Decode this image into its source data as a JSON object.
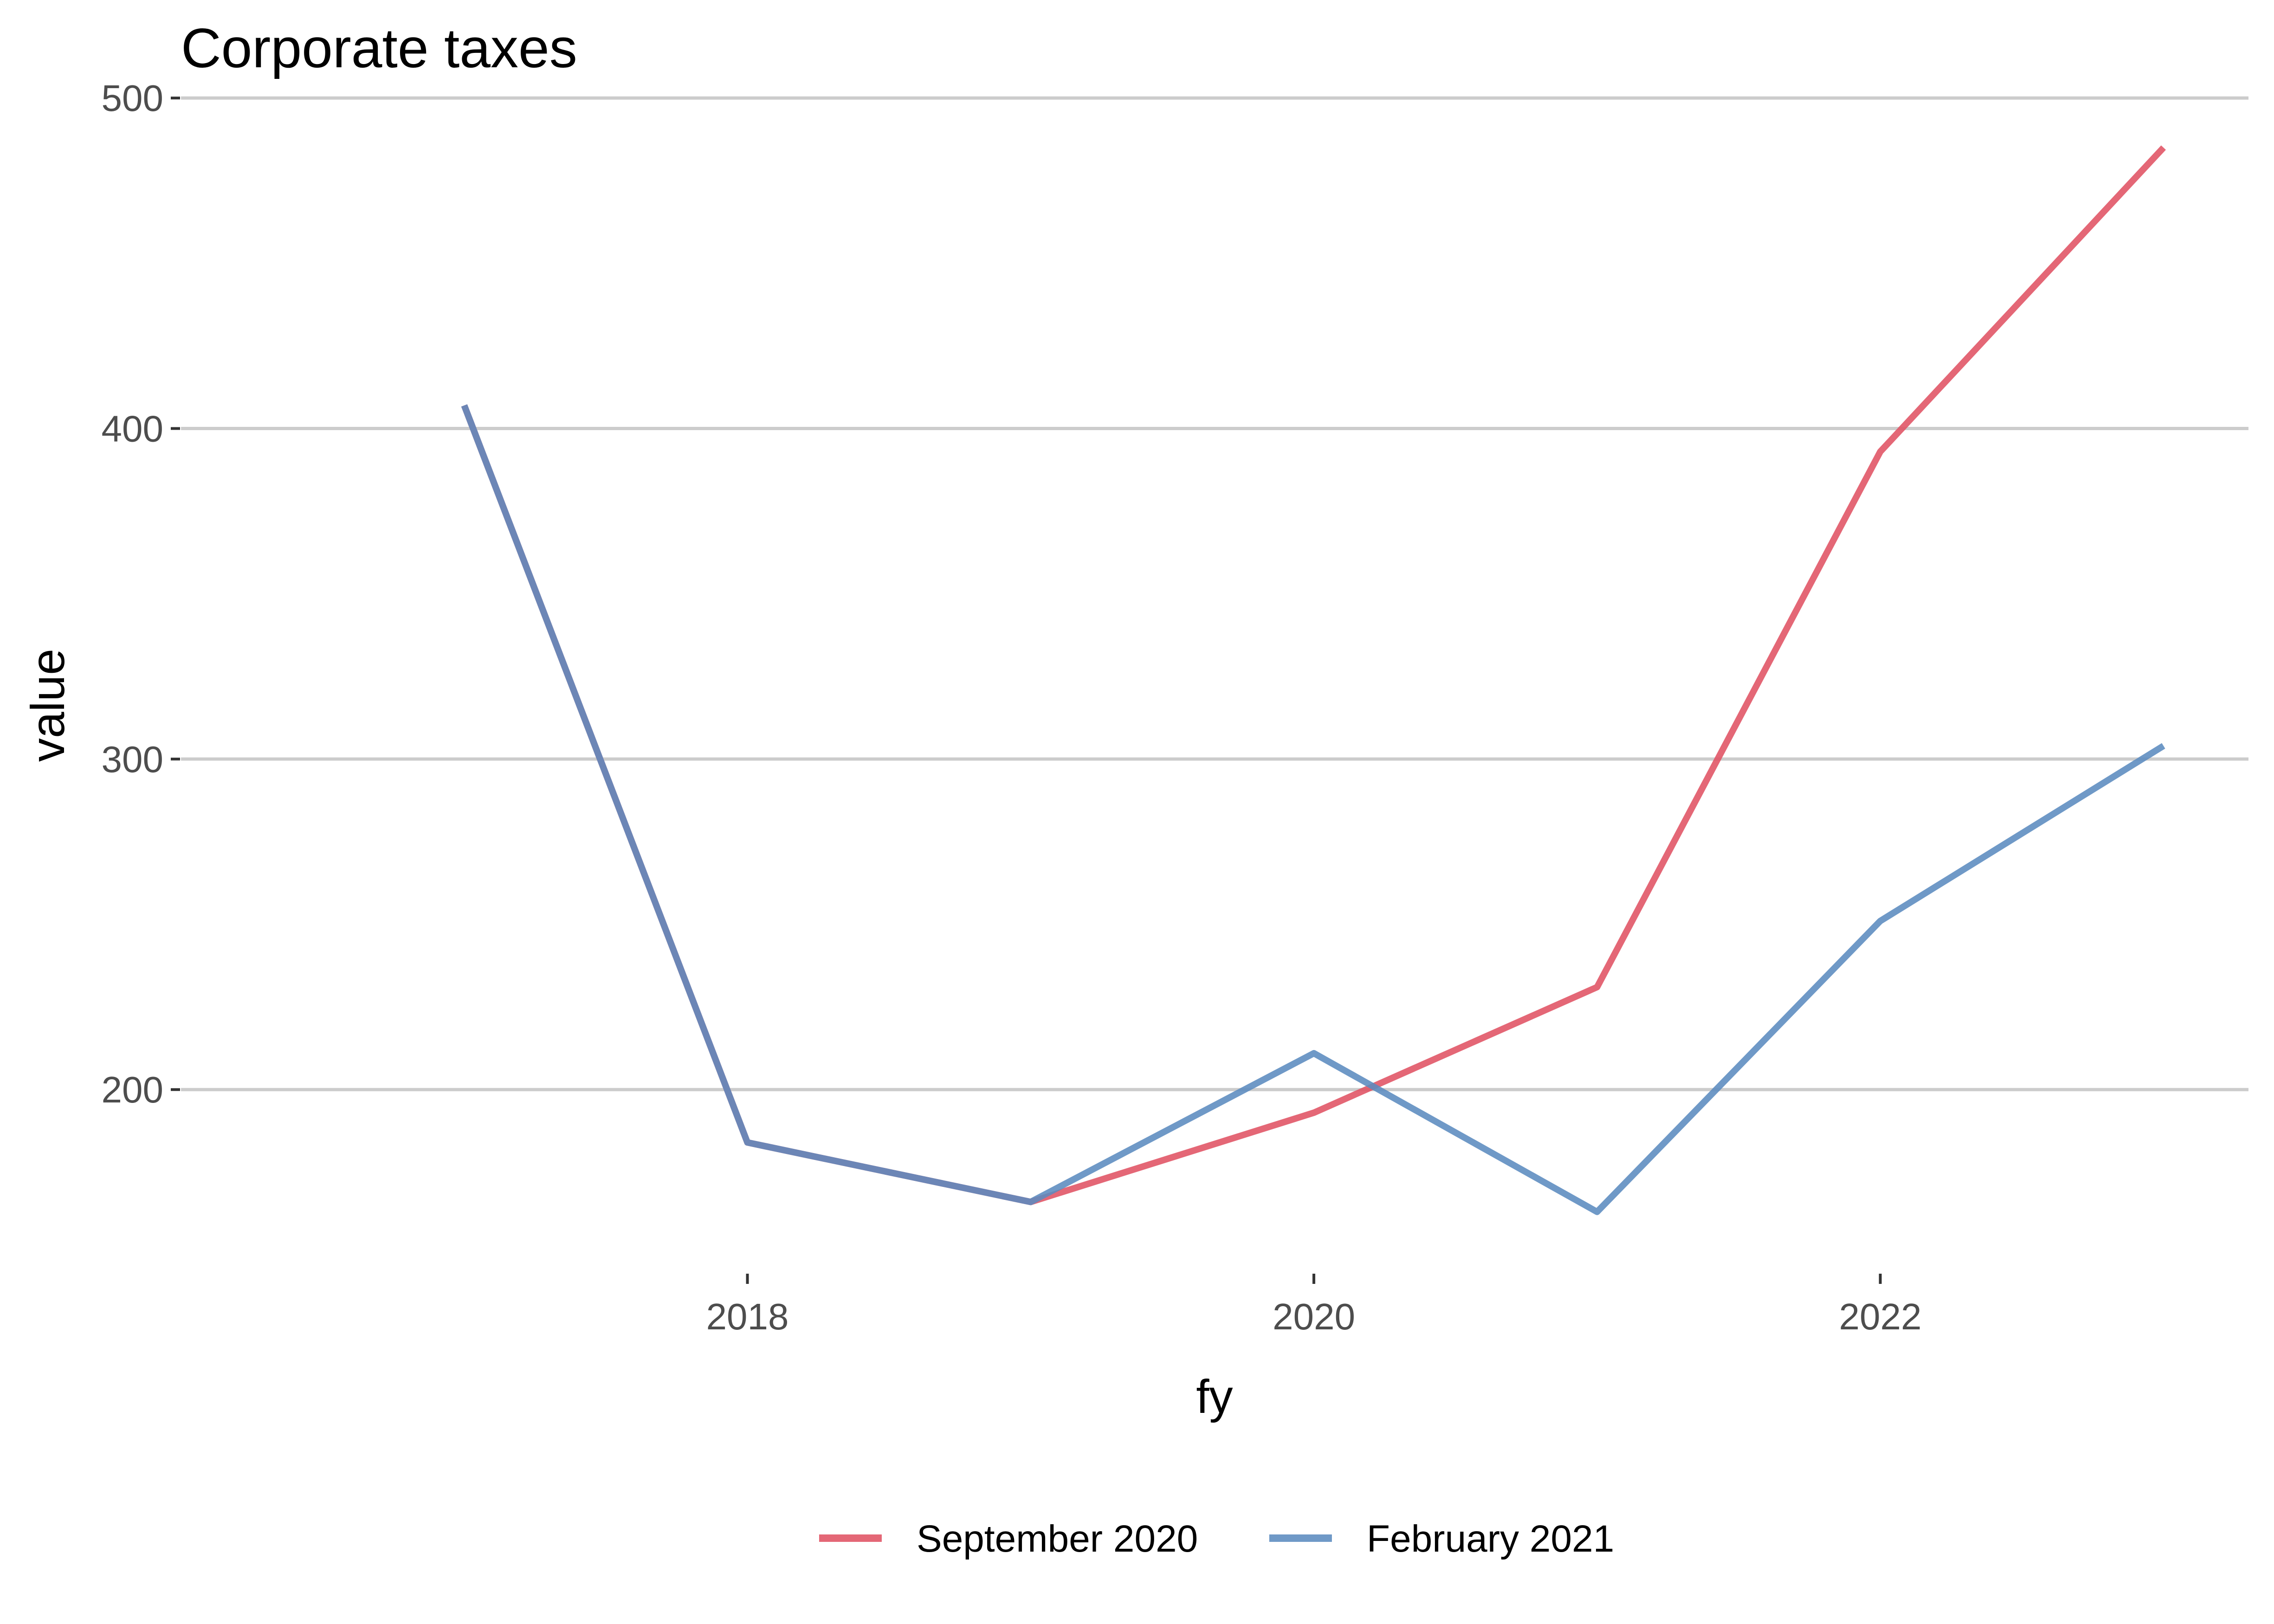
{
  "chart_data": {
    "type": "line",
    "title": "Corporate taxes",
    "xlabel": "fy",
    "ylabel": "value",
    "x": [
      2017,
      2018,
      2019,
      2020,
      2021,
      2022,
      2023
    ],
    "xlim": [
      2016.0,
      2023.3
    ],
    "ylim": [
      145,
      510
    ],
    "xticks": [
      2018,
      2020,
      2022
    ],
    "yticks": [
      200,
      300,
      400,
      500
    ],
    "grid": "horizontal-major",
    "legend_position": "bottom",
    "series": [
      {
        "name": "September 2020",
        "color": "#e05263",
        "values": [
          407,
          184,
          166,
          193,
          231,
          393,
          485
        ]
      },
      {
        "name": "February 2021",
        "color": "#5b8bbf",
        "values": [
          407,
          184,
          166,
          211,
          163,
          251,
          304
        ]
      }
    ]
  }
}
